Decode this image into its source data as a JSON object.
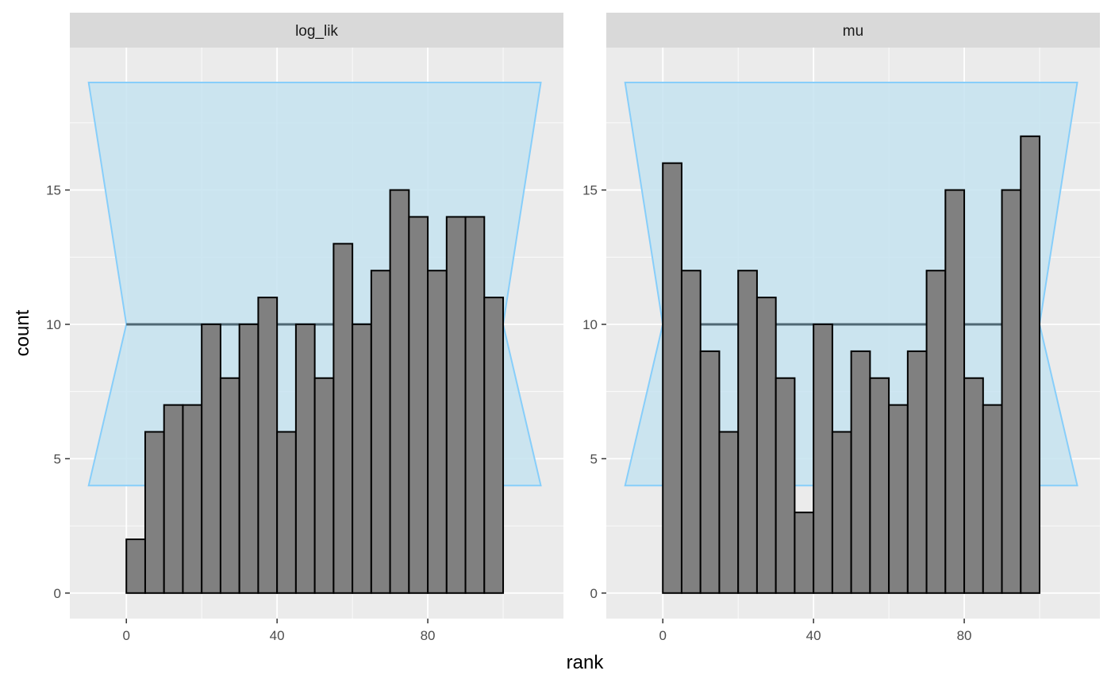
{
  "chart_data": [
    {
      "type": "bar",
      "panel": "log_lik",
      "xlabel": "rank",
      "ylabel": "count",
      "xlim": [
        -15,
        116
      ],
      "ylim": [
        -0.95,
        20.3
      ],
      "x_ticks": [
        0,
        40,
        80
      ],
      "y_ticks": [
        0,
        5,
        10,
        15
      ],
      "bin_width": 5,
      "bin_starts": [
        0,
        5,
        10,
        15,
        20,
        25,
        30,
        35,
        40,
        45,
        50,
        55,
        60,
        65,
        70,
        75,
        80,
        85,
        90,
        95
      ],
      "values": [
        2,
        6,
        7,
        7,
        10,
        8,
        10,
        11,
        6,
        10,
        8,
        13,
        10,
        12,
        15,
        14,
        12,
        14,
        14,
        11
      ],
      "expected_count": 10,
      "expected_line_range": [
        0,
        100
      ],
      "band": {
        "x": [
          -10,
          0,
          110,
          100
        ],
        "lower": 4,
        "upper": 19,
        "center": 10
      },
      "bar_fill": "#808080",
      "bar_stroke": "#000000",
      "band_fill": "#c6e3f0",
      "band_stroke": "#87cefa",
      "line_color": "#4f6874",
      "panel_bg": "#ebebeb",
      "strip_bg": "#d9d9d9",
      "grid": true
    },
    {
      "type": "bar",
      "panel": "mu",
      "xlabel": "rank",
      "ylabel": "count",
      "xlim": [
        -15,
        116
      ],
      "ylim": [
        -0.95,
        20.3
      ],
      "x_ticks": [
        0,
        40,
        80
      ],
      "y_ticks": [
        0,
        5,
        10,
        15
      ],
      "bin_width": 5,
      "bin_starts": [
        0,
        5,
        10,
        15,
        20,
        25,
        30,
        35,
        40,
        45,
        50,
        55,
        60,
        65,
        70,
        75,
        80,
        85,
        90,
        95
      ],
      "values": [
        16,
        12,
        9,
        6,
        12,
        11,
        8,
        3,
        10,
        6,
        9,
        8,
        7,
        9,
        12,
        15,
        8,
        7,
        15,
        17
      ],
      "expected_count": 10,
      "expected_line_range": [
        0,
        100
      ],
      "band": {
        "x": [
          -10,
          0,
          110,
          100
        ],
        "lower": 4,
        "upper": 19,
        "center": 10
      },
      "bar_fill": "#808080",
      "bar_stroke": "#000000",
      "band_fill": "#c6e3f0",
      "band_stroke": "#87cefa",
      "line_color": "#4f6874",
      "panel_bg": "#ebebeb",
      "strip_bg": "#d9d9d9",
      "grid": true
    }
  ],
  "figure": {
    "xlabel": "rank",
    "ylabel": "count"
  }
}
